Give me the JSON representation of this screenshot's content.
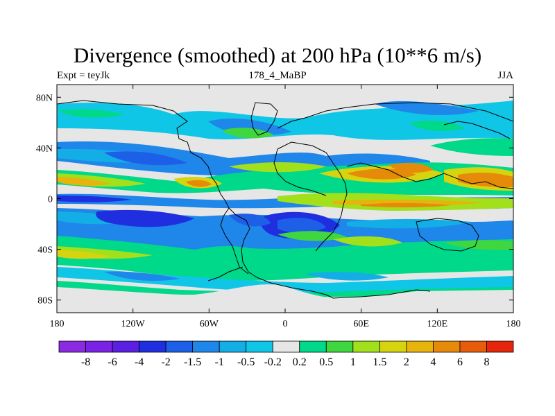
{
  "title": "Divergence (smoothed) at 200 hPa (10**6 m/s)",
  "left_label": "Expt = teyJk",
  "center_label": "178_4_MaBP",
  "right_label": "JJA",
  "lat_ticks": [
    {
      "value": 80,
      "label": "80N"
    },
    {
      "value": 40,
      "label": "40N"
    },
    {
      "value": 0,
      "label": "0"
    },
    {
      "value": -40,
      "label": "40S"
    },
    {
      "value": -80,
      "label": "80S"
    }
  ],
  "lon_ticks": [
    {
      "value": -180,
      "label": "180"
    },
    {
      "value": -120,
      "label": "120W"
    },
    {
      "value": -60,
      "label": "60W"
    },
    {
      "value": 0,
      "label": "0"
    },
    {
      "value": 60,
      "label": "60E"
    },
    {
      "value": 120,
      "label": "120E"
    },
    {
      "value": 180,
      "label": "180"
    }
  ],
  "colorbar": {
    "colors": [
      "#8a2be2",
      "#7a22e6",
      "#5a1fe0",
      "#1f2fe0",
      "#1e5fe8",
      "#1f86ea",
      "#13aee6",
      "#10c6e6",
      "#e6e6e6",
      "#00d88a",
      "#3fd63f",
      "#a2e01b",
      "#d6d40f",
      "#e6b40c",
      "#e68a0a",
      "#e65c0a",
      "#e6260a"
    ],
    "labels": [
      "-8",
      "-6",
      "-4",
      "-2",
      "-1.5",
      "-1",
      "-0.5",
      "-0.2",
      "0.2",
      "0.5",
      "1",
      "1.5",
      "2",
      "4",
      "6",
      "8"
    ]
  }
}
